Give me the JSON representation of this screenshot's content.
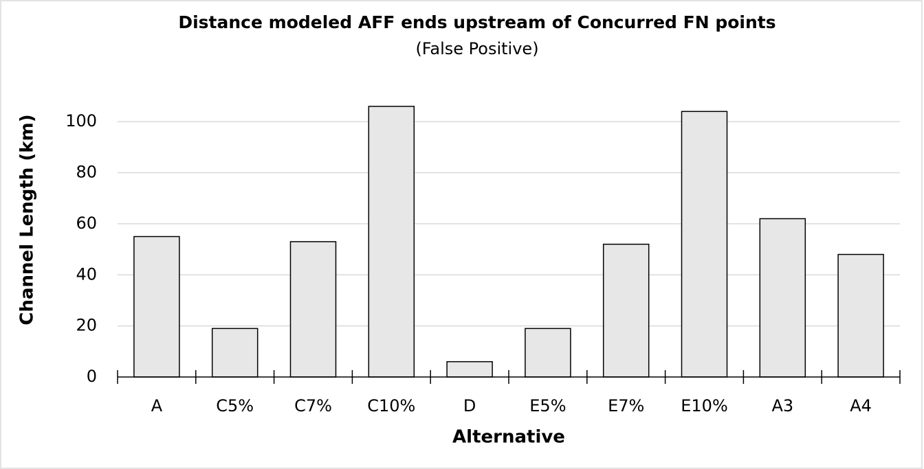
{
  "chart_data": {
    "type": "bar",
    "title": "Distance modeled AFF ends upstream of Concurred FN points",
    "subtitle": "(False Positive)",
    "x_label": "Alternative",
    "y_label": "Channel Length (km)",
    "categories": [
      "A",
      "C5%",
      "C7%",
      "C10%",
      "D",
      "E5%",
      "E7%",
      "E10%",
      "A3",
      "A4"
    ],
    "values": [
      55,
      19,
      53,
      106,
      6,
      19,
      52,
      104,
      62,
      48
    ],
    "color": "#e7e7e7",
    "ylim": [
      0,
      110
    ],
    "yticks": [
      0,
      20,
      40,
      60,
      80,
      100
    ],
    "grid": true
  }
}
